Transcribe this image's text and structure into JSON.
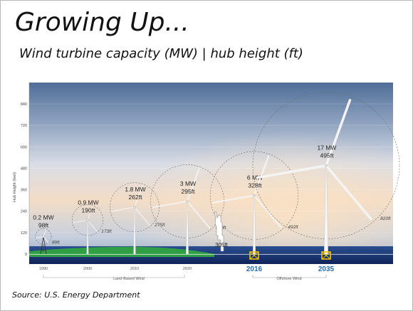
{
  "slide": {
    "title": "Growing Up...",
    "subtitle": "Wind turbine capacity (MW) | hub height (ft)",
    "source": "Source: U.S. Energy Department"
  },
  "chart_data": {
    "type": "scatter",
    "ylabel": "Hub Height (feet)",
    "ylim": [
      0,
      900
    ],
    "yticks": [
      0,
      120,
      240,
      360,
      480,
      600,
      720,
      840
    ],
    "x_labels": [
      "1990",
      "2000",
      "2010",
      "2020",
      "2016",
      "2035"
    ],
    "group_labels": {
      "land": "Land-Based Wind",
      "offshore": "Offshore Wind"
    },
    "series": [
      {
        "x": "1990",
        "capacity": "0.2 MW",
        "height_label": "98ft",
        "hub_height": 98,
        "rotor_label": "89ft",
        "rotor": 89,
        "offshore": false
      },
      {
        "x": "2000",
        "capacity": "0.9 MW",
        "height_label": "190ft",
        "hub_height": 190,
        "rotor_label": "173ft",
        "rotor": 173,
        "offshore": false
      },
      {
        "x": "2010",
        "capacity": "1.8 MW",
        "height_label": "262ft",
        "hub_height": 262,
        "rotor_label": "275ft",
        "rotor": 275,
        "offshore": false
      },
      {
        "x": "2020",
        "capacity": "3 MW",
        "height_label": "295ft",
        "hub_height": 295,
        "rotor_label": "410ft",
        "rotor": 410,
        "offshore": false
      },
      {
        "x": "2016",
        "capacity": "6 MW",
        "height_label": "328ft",
        "hub_height": 328,
        "rotor_label": "492ft",
        "rotor": 492,
        "offshore": true
      },
      {
        "x": "2035",
        "capacity": "17 MW",
        "height_label": "495ft",
        "hub_height": 495,
        "rotor_label": "820ft",
        "rotor": 820,
        "offshore": true
      }
    ],
    "reference": {
      "label": "305ft",
      "height": 305
    },
    "colors": {
      "ground": "#2f9e44",
      "water": "#1a3a7a",
      "foundation": "#f2c200",
      "year_highlight": "#2b6cb0"
    }
  }
}
